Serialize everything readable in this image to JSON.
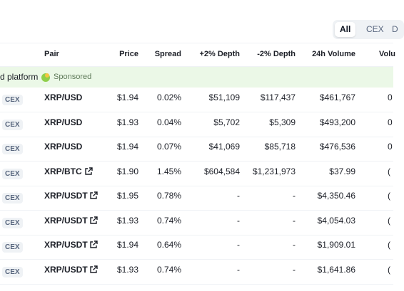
{
  "tabs": [
    "All",
    "CEX",
    "D"
  ],
  "table": {
    "headers": [
      "Pair",
      "Price",
      "Spread",
      "+2% Depth",
      "-2% Depth",
      "24h Volume",
      "Volu"
    ],
    "sponsored": {
      "text": "d platform",
      "label": "Sponsored"
    },
    "rows": [
      {
        "badge": "CEX",
        "pair": "XRP/USD",
        "external": false,
        "price": "$1.94",
        "spread": "0.02%",
        "depth_plus": "$51,109",
        "depth_minus": "$117,437",
        "volume": "$461,767",
        "extra": "0"
      },
      {
        "badge": "CEX",
        "pair": "XRP/USD",
        "external": false,
        "price": "$1.93",
        "spread": "0.04%",
        "depth_plus": "$5,702",
        "depth_minus": "$5,309",
        "volume": "$493,200",
        "extra": "0"
      },
      {
        "badge": "CEX",
        "pair": "XRP/USD",
        "external": false,
        "price": "$1.94",
        "spread": "0.07%",
        "depth_plus": "$41,069",
        "depth_minus": "$85,718",
        "volume": "$476,536",
        "extra": "0"
      },
      {
        "badge": "CEX",
        "pair": "XRP/BTC",
        "external": true,
        "price": "$1.90",
        "spread": "1.45%",
        "depth_plus": "$604,584",
        "depth_minus": "$1,231,973",
        "volume": "$37.99",
        "extra": "("
      },
      {
        "badge": "CEX",
        "pair": "XRP/USDT",
        "external": true,
        "price": "$1.95",
        "spread": "0.78%",
        "depth_plus": "-",
        "depth_minus": "-",
        "volume": "$4,350.46",
        "extra": "("
      },
      {
        "badge": "CEX",
        "pair": "XRP/USDT",
        "external": true,
        "price": "$1.93",
        "spread": "0.74%",
        "depth_plus": "-",
        "depth_minus": "-",
        "volume": "$4,054.03",
        "extra": "("
      },
      {
        "badge": "CEX",
        "pair": "XRP/USDT",
        "external": true,
        "price": "$1.94",
        "spread": "0.64%",
        "depth_plus": "-",
        "depth_minus": "-",
        "volume": "$1,909.01",
        "extra": "("
      },
      {
        "badge": "CEX",
        "pair": "XRP/USDT",
        "external": true,
        "price": "$1.93",
        "spread": "0.74%",
        "depth_plus": "-",
        "depth_minus": "-",
        "volume": "$1,641.86",
        "extra": "("
      }
    ]
  }
}
